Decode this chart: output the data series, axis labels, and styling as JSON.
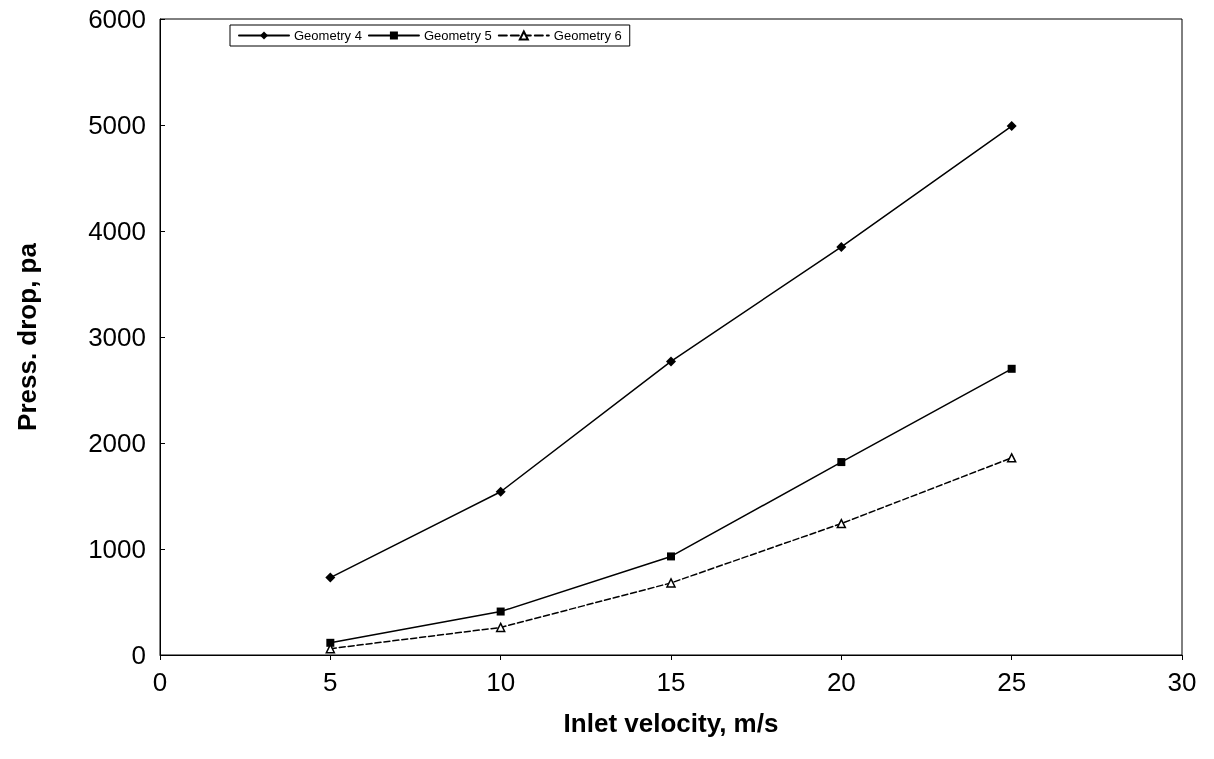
{
  "chart_data": {
    "type": "line",
    "xlabel": "Inlet velocity, m/s",
    "ylabel": "Press. drop, pa",
    "x": [
      5,
      10,
      15,
      20,
      25
    ],
    "series": [
      {
        "name": "Geometry 4",
        "color": "#000000",
        "marker": "diamond",
        "line_style": "solid",
        "values": [
          730,
          1540,
          2770,
          3850,
          4990
        ]
      },
      {
        "name": "Geometry 5",
        "color": "#000000",
        "marker": "square",
        "line_style": "solid",
        "values": [
          115,
          410,
          930,
          1820,
          2700
        ]
      },
      {
        "name": "Geometry 6",
        "color": "#000000",
        "marker": "triangle",
        "line_style": "dashed",
        "values": [
          60,
          260,
          680,
          1240,
          1860
        ]
      }
    ],
    "xlim": [
      0,
      30
    ],
    "xticks": [
      0,
      5,
      10,
      15,
      20,
      25,
      30
    ],
    "ylim": [
      0,
      6000
    ],
    "yticks": [
      0,
      1000,
      2000,
      3000,
      4000,
      5000,
      6000
    ],
    "grid": false,
    "legend": "top left"
  }
}
